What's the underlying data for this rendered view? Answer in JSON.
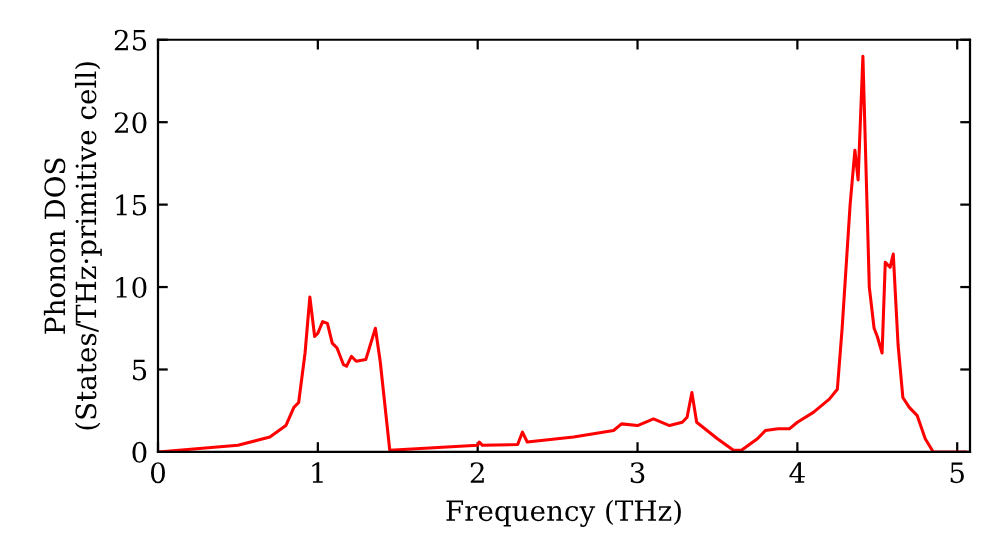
{
  "chart_data": {
    "type": "line",
    "xlabel": "Frequency (THz)",
    "ylabel": "Phonon DOS\n(States/THz·primitive cell)",
    "xlim": [
      0,
      5.08
    ],
    "ylim": [
      0,
      25
    ],
    "xticks": [
      0,
      1,
      2,
      3,
      4,
      5
    ],
    "yticks": [
      0,
      5,
      10,
      15,
      20,
      25
    ],
    "grid": false,
    "legend": false,
    "marker": "none",
    "line_style": "solid",
    "series": [
      {
        "color": "#ff0000",
        "x": [
          0,
          0.5,
          0.7,
          0.8,
          0.85,
          0.88,
          0.92,
          0.95,
          0.98,
          1.0,
          1.03,
          1.06,
          1.09,
          1.12,
          1.16,
          1.18,
          1.21,
          1.24,
          1.3,
          1.36,
          1.39,
          1.45,
          2.0,
          2.01,
          2.03,
          2.25,
          2.28,
          2.31,
          2.6,
          2.85,
          2.9,
          3.0,
          3.1,
          3.2,
          3.28,
          3.31,
          3.34,
          3.37,
          3.5,
          3.6,
          3.65,
          3.75,
          3.8,
          3.88,
          3.95,
          4.0,
          4.1,
          4.2,
          4.25,
          4.28,
          4.33,
          4.36,
          4.38,
          4.41,
          4.45,
          4.48,
          4.5,
          4.53,
          4.55,
          4.58,
          4.6,
          4.63,
          4.66,
          4.7,
          4.75,
          4.8,
          4.85,
          5.05
        ],
        "values": [
          0,
          0.4,
          0.9,
          1.6,
          2.7,
          3.0,
          6,
          9.4,
          7.0,
          7.2,
          7.9,
          7.8,
          6.6,
          6.3,
          5.3,
          5.2,
          5.8,
          5.5,
          5.6,
          7.5,
          5.5,
          0.1,
          0.4,
          0.6,
          0.4,
          0.45,
          1.2,
          0.6,
          0.9,
          1.3,
          1.7,
          1.6,
          2.0,
          1.6,
          1.8,
          2.1,
          3.6,
          1.8,
          0.8,
          0.1,
          0.1,
          0.8,
          1.3,
          1.4,
          1.4,
          1.8,
          2.4,
          3.2,
          3.8,
          7.5,
          15,
          18.3,
          16.5,
          24,
          10,
          7.5,
          7.0,
          6.0,
          11.5,
          11.2,
          12,
          6.5,
          3.3,
          2.7,
          2.2,
          0.8,
          0,
          0
        ]
      }
    ]
  }
}
